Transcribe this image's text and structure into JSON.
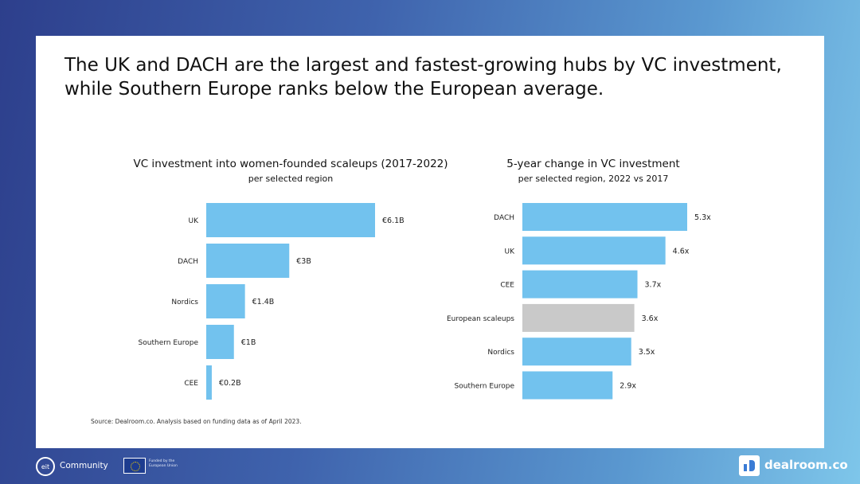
{
  "headline": "The UK and DACH are the largest and fastest-growing hubs by VC investment, while Southern Europe ranks below the European average.",
  "colors": {
    "bar": "#72c2ee",
    "bar_muted": "#c9c9c9",
    "background_start": "#2d3f8c",
    "background_end": "#7ec6ea"
  },
  "chart_data": [
    {
      "type": "bar",
      "orientation": "horizontal",
      "title": "VC investment into women-founded scaleups (2017-2022)",
      "subtitle": "per selected region",
      "categories": [
        "UK",
        "DACH",
        "Nordics",
        "Southern Europe",
        "CEE"
      ],
      "values": [
        6.1,
        3.0,
        1.4,
        1.0,
        0.2
      ],
      "labels": [
        "€6.1B",
        "€3B",
        "€1.4B",
        "€1B",
        "€0.2B"
      ],
      "unit": "€B",
      "xlim": [
        0,
        6.1
      ]
    },
    {
      "type": "bar",
      "orientation": "horizontal",
      "title": "5-year change in VC investment",
      "subtitle": "per selected region, 2022 vs 2017",
      "categories": [
        "DACH",
        "UK",
        "CEE",
        "European scaleups",
        "Nordics",
        "Southern Europe"
      ],
      "values": [
        5.3,
        4.6,
        3.7,
        3.6,
        3.5,
        2.9
      ],
      "labels": [
        "5.3x",
        "4.6x",
        "3.7x",
        "3.6x",
        "3.5x",
        "2.9x"
      ],
      "highlight": [
        false,
        false,
        false,
        true,
        false,
        false
      ],
      "unit": "x",
      "xlim": [
        0,
        5.3
      ]
    }
  ],
  "source": "Source: Dealroom.co. Analysis based on funding data as of April 2023.",
  "footer": {
    "eit_logo": "eit",
    "community_label": "Community",
    "eu_text": "Funded by the European Union",
    "dealroom_label": "dealroom.co"
  }
}
